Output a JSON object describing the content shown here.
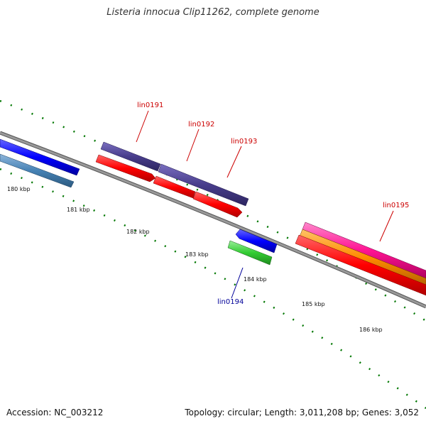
{
  "title": "Listeria innocua Clip11262, complete genome",
  "footer": {
    "accession": "Accession: NC_003212",
    "summary": "Topology: circular; Length: 3,011,208 bp; Genes: 3,052"
  },
  "kbp_labels": [
    "180 kbp",
    "181 kbp",
    "182 kbp",
    "183 kbp",
    "184 kbp",
    "185 kbp",
    "186 kbp"
  ],
  "gene_labels": [
    {
      "text": "lin0191",
      "strand": "forward"
    },
    {
      "text": "lin0192",
      "strand": "forward"
    },
    {
      "text": "lin0193",
      "strand": "forward"
    },
    {
      "text": "lin0194",
      "strand": "reverse"
    },
    {
      "text": "lin0195",
      "strand": "forward"
    }
  ],
  "colors": {
    "backbone": "#808080",
    "forward_label": "#cc0000",
    "reverse_label": "#000099",
    "tick": "#007700",
    "cds_red": "#ff0000",
    "slate": "#483d8b",
    "blue": "#0000ff",
    "steel_blue": "#4682b4",
    "green": "#33cc33",
    "magenta": "#ff1493",
    "orange": "#ff8c00"
  }
}
